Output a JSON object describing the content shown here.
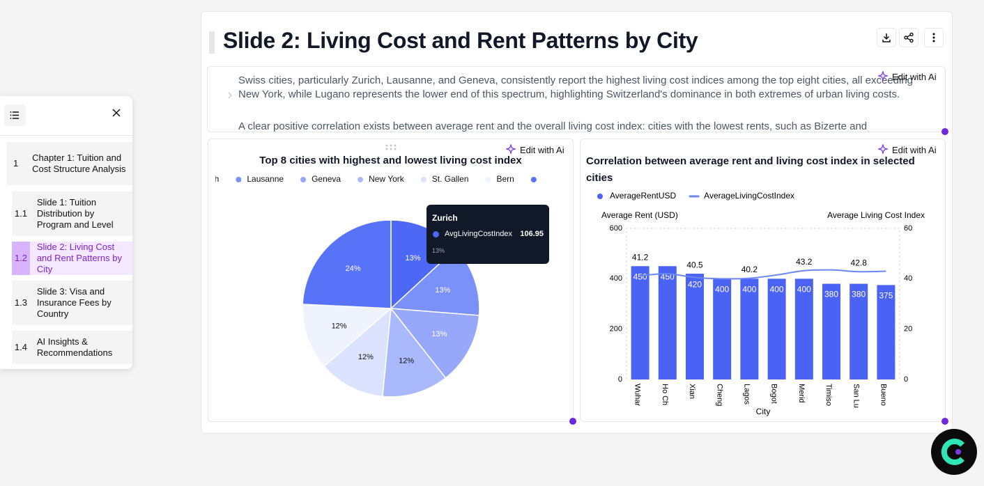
{
  "sidebar": {
    "items": [
      {
        "number": "1",
        "label": "Chapter 1: Tuition and Cost Structure Analysis"
      },
      {
        "number": "1.1",
        "label": "Slide 1: Tuition Distribution by Program and Level"
      },
      {
        "number": "1.2",
        "label": "Slide 2: Living Cost and Rent Patterns by City"
      },
      {
        "number": "1.3",
        "label": "Slide 3: Visa and Insurance Fees by Country"
      },
      {
        "number": "1.4",
        "label": "AI Insights & Recommendations"
      }
    ],
    "active": 2
  },
  "slide": {
    "title": "Slide 2: Living Cost and Rent Patterns by City",
    "edit_label": "Edit with Ai",
    "paragraphs": [
      "Swiss cities, particularly Zurich, Lausanne, and Geneva, consistently report the highest living cost indices among the top eight cities, all exceeding New York, while Lugano represents the lower end of this spectrum, highlighting Switzerland's dominance in both extremes of urban living costs.",
      "A clear positive correlation exists between average rent and the overall living cost index: cities with the lowest rents, such as Bizerte and"
    ]
  },
  "chart_data": [
    {
      "type": "pie",
      "title": "Top 8 cities with highest and lowest living cost index",
      "categories": [
        "Zurich",
        "Lausanne",
        "Geneva",
        "New York",
        "St. Gallen",
        "Bern",
        null
      ],
      "values": [
        13,
        13,
        13,
        12,
        12,
        12,
        24
      ],
      "value_labels": [
        "13%",
        "13%",
        "13%",
        "12%",
        "12%",
        "12%",
        "24%"
      ],
      "colors": [
        "#4d68f5",
        "#7a91f9",
        "#97a8fa",
        "#aab9fb",
        "#dbe3fe",
        "#eff3fe",
        "#5873f7"
      ],
      "tooltip": {
        "series_name": "AvgLivingCostIndex",
        "value": 106.95
      }
    },
    {
      "type": "bar",
      "title": "Correlation between average rent and living cost index in selected cities",
      "categories": [
        "Wuhar",
        "Ho Ch",
        "Xian",
        "Cheng",
        "Lagos",
        "Bogot",
        "Merid",
        "Timiso",
        "San Lu",
        "Bueno"
      ],
      "series": [
        {
          "name": "AverageRentUSD",
          "color": "#4a63f5",
          "values": [
            450,
            450,
            420,
            400,
            400,
            400,
            400,
            380,
            380,
            375
          ]
        },
        {
          "name": "AverageLivingCostIndex",
          "color": "#6a86f7",
          "type": "line",
          "axis": "y2",
          "values": [
            41.2,
            42.0,
            40.5,
            40.0,
            40.2,
            41.5,
            43.2,
            43.5,
            42.8,
            43.0
          ],
          "label_interval": 2
        }
      ],
      "y_label": "Average Rent (USD)",
      "y2_label": "Average Living Cost Index",
      "x_label": "City",
      "ylim": [
        0,
        600
      ],
      "yticks": [
        0,
        200,
        400,
        600
      ],
      "y2lim": [
        0,
        60
      ],
      "y2ticks": [
        0,
        20,
        40,
        60
      ],
      "grid": false
    }
  ]
}
